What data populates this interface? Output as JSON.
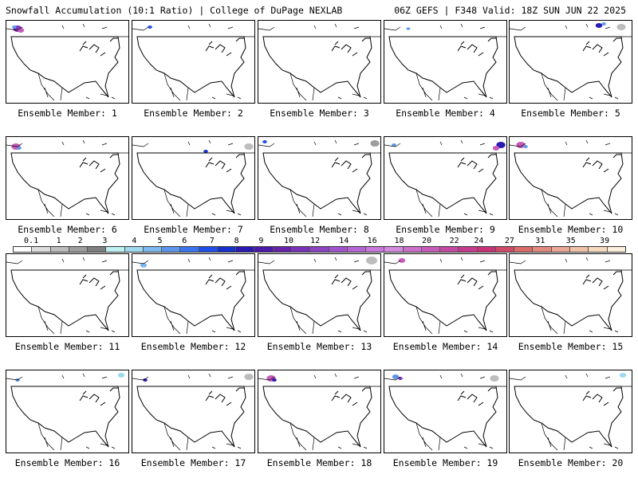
{
  "header": {
    "title_left": "Snowfall Accumulation (10:1 Ratio) | College of DuPage NEXLAB",
    "title_right": "06Z GEFS | F348 Valid: 18Z SUN JUN 22 2025"
  },
  "legend": {
    "labels": [
      "0.1",
      "1",
      "2",
      "3",
      "4",
      "5",
      "6",
      "7",
      "8",
      "9",
      "10",
      "12",
      "14",
      "16",
      "18",
      "20",
      "22",
      "24",
      "27",
      "31",
      "35",
      "39"
    ],
    "colors": [
      "#ffffff",
      "#dcdcdc",
      "#bdbdbd",
      "#9e9e9e",
      "#7f7f7f",
      "#bff0f0",
      "#9fd9f0",
      "#7fb8ee",
      "#5c96ee",
      "#3a74ee",
      "#1f4fe8",
      "#1632c8",
      "#2a1ab0",
      "#4a1aa8",
      "#6622aa",
      "#7a33b8",
      "#8c44c4",
      "#a055cf",
      "#b566d6",
      "#c877da",
      "#d38bde",
      "#cf6fcc",
      "#c95bb8",
      "#c54aa4",
      "#c63b8e",
      "#c83378",
      "#d04a6a",
      "#db6a6a",
      "#e38a80",
      "#eaa894",
      "#f0c2a8",
      "#f6dac0",
      "#fbeedd"
    ]
  },
  "members": [
    {
      "label": "Ensemble Member: 1"
    },
    {
      "label": "Ensemble Member: 2"
    },
    {
      "label": "Ensemble Member: 3"
    },
    {
      "label": "Ensemble Member: 4"
    },
    {
      "label": "Ensemble Member: 5"
    },
    {
      "label": "Ensemble Member: 6"
    },
    {
      "label": "Ensemble Member: 7"
    },
    {
      "label": "Ensemble Member: 8"
    },
    {
      "label": "Ensemble Member: 9"
    },
    {
      "label": "Ensemble Member: 10"
    },
    {
      "label": "Ensemble Member: 11"
    },
    {
      "label": "Ensemble Member: 12"
    },
    {
      "label": "Ensemble Member: 13"
    },
    {
      "label": "Ensemble Member: 14"
    },
    {
      "label": "Ensemble Member: 15"
    },
    {
      "label": "Ensemble Member: 16"
    },
    {
      "label": "Ensemble Member: 17"
    },
    {
      "label": "Ensemble Member: 18"
    },
    {
      "label": "Ensemble Member: 19"
    },
    {
      "label": "Ensemble Member: 20"
    }
  ]
}
